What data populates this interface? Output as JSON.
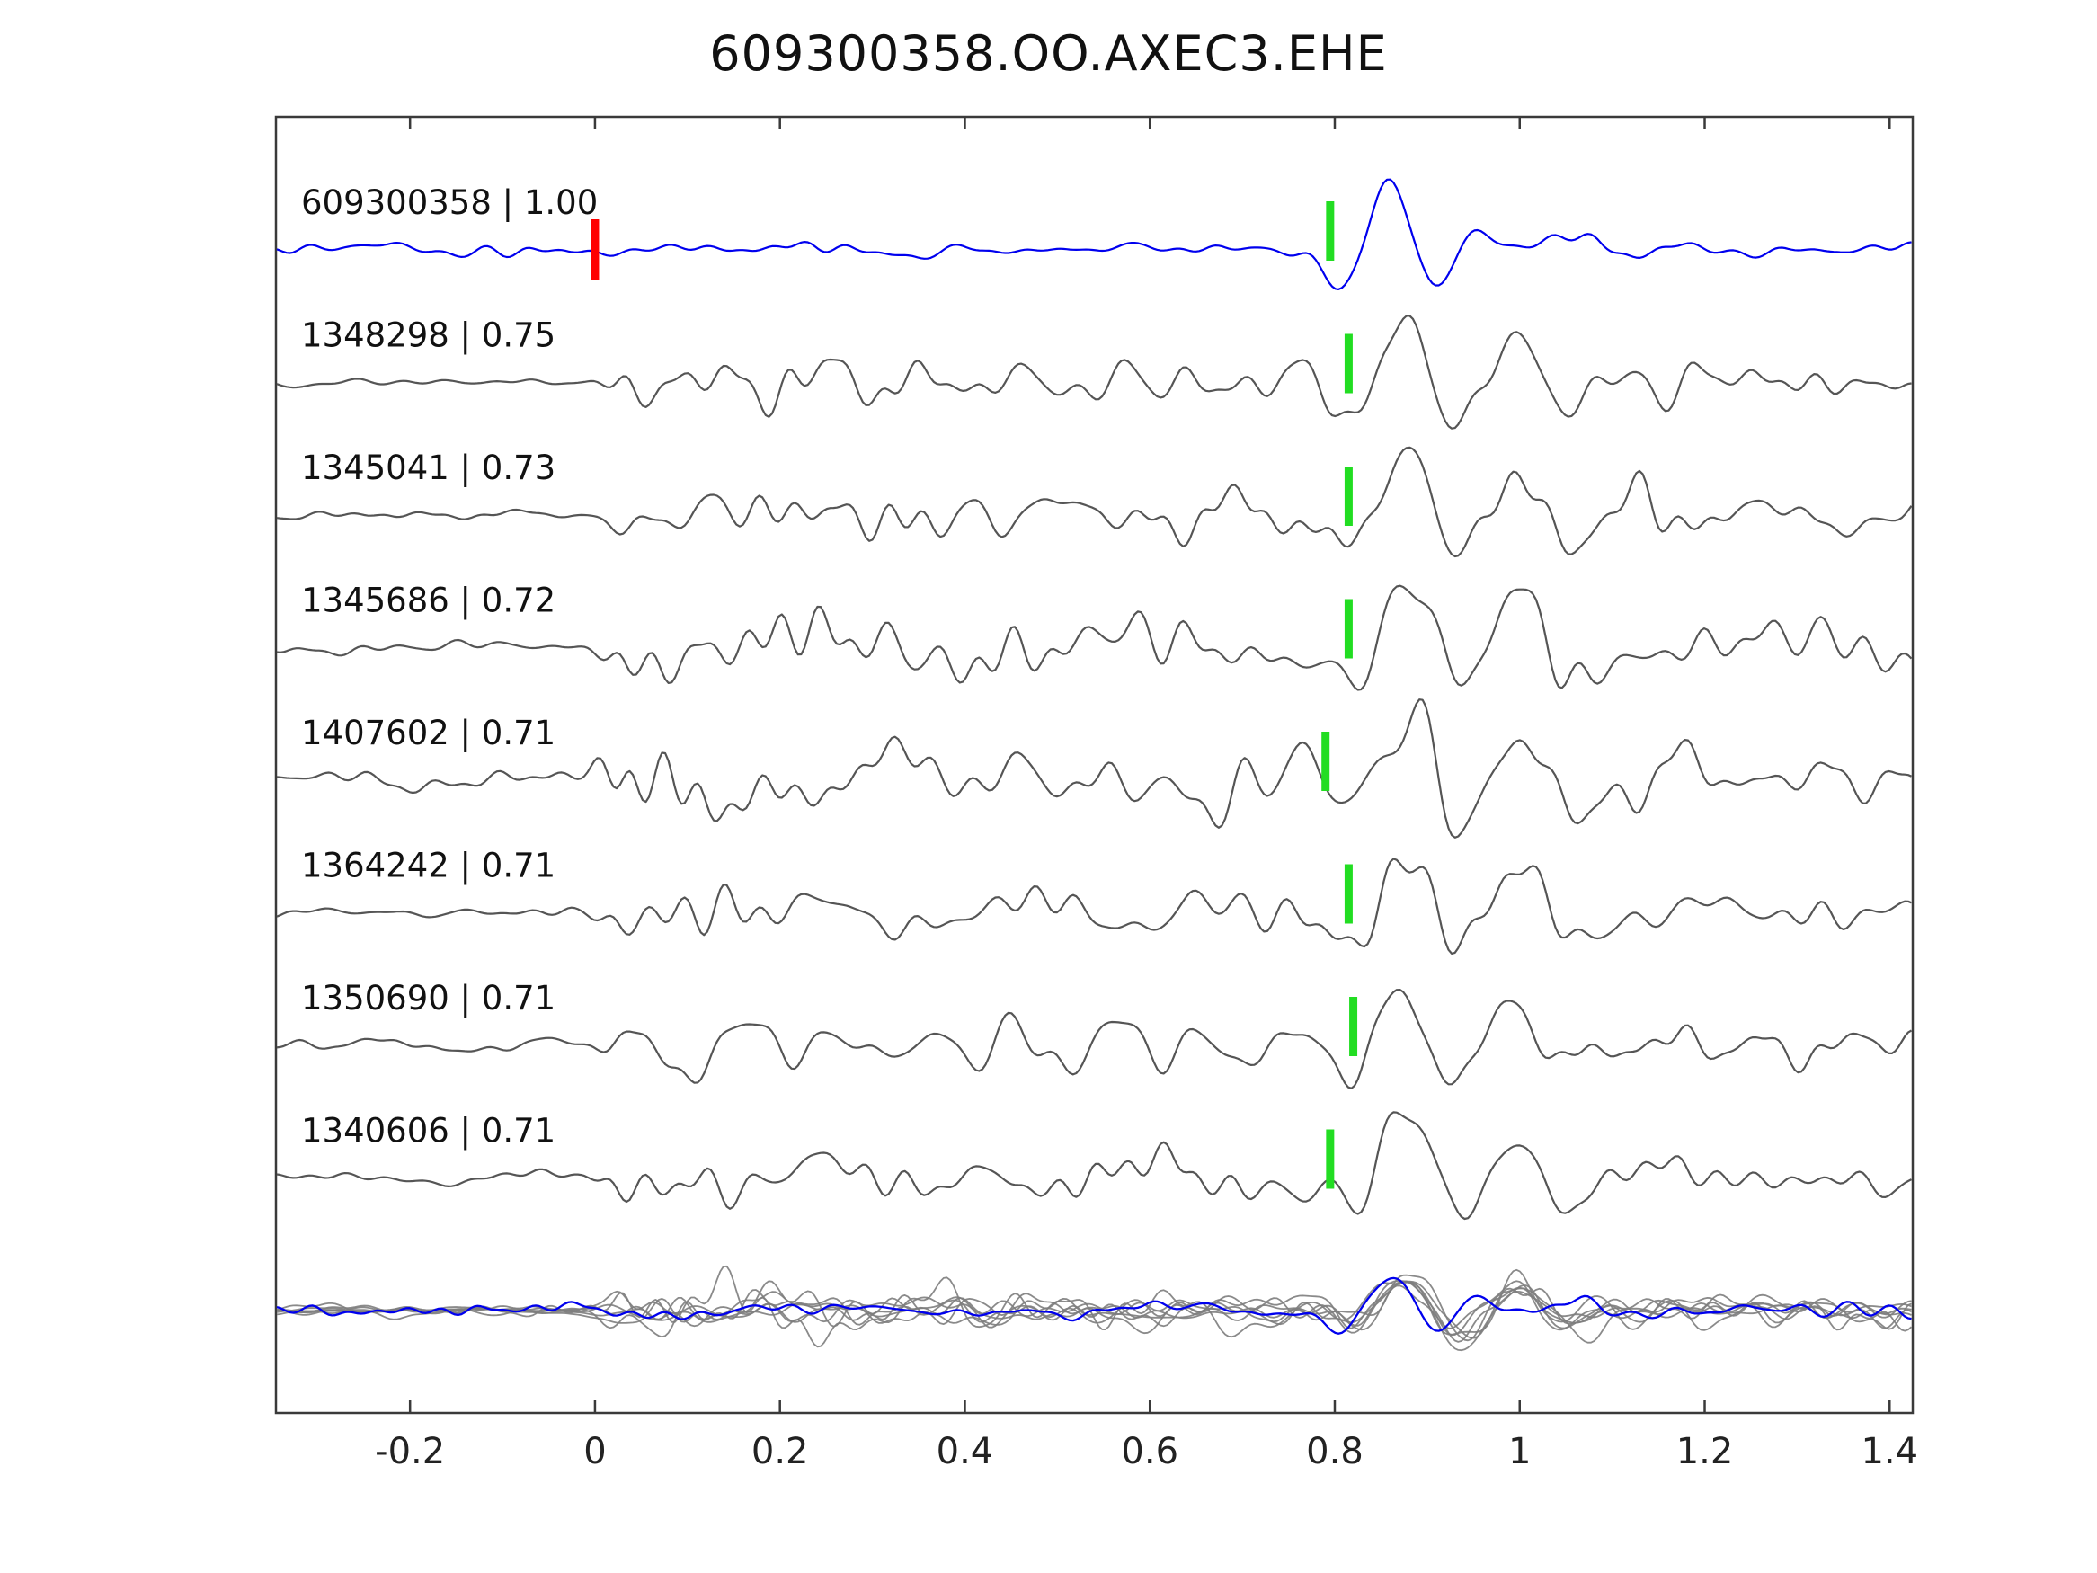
{
  "colors": {
    "template": "#0000ee",
    "detection": "#555555",
    "overlay_gray": "#7d7d7d",
    "pick_marker": "#22dd22",
    "origin_marker": "#ff0000",
    "axis": "#3a3a3a",
    "text": "#222222"
  },
  "chart_data": {
    "type": "line",
    "title": "609300358.OO.AXEC3.EHE",
    "xlabel": "",
    "ylabel": "",
    "xlim": [
      -0.345,
      1.425
    ],
    "x_ticks": [
      -0.2,
      0,
      0.2,
      0.4,
      0.6,
      0.8,
      1,
      1.2,
      1.4
    ],
    "x_tick_labels": [
      "-0.2",
      "0",
      "0.2",
      "0.4",
      "0.6",
      "0.8",
      "1",
      "1.2",
      "1.4"
    ],
    "grid": false,
    "legend": "none",
    "description": "Template-matching waveform figure: blue template trace on top, seven gray detection traces below with green pick markers near t=0.8, red origin marker at t=0 on the template, and an overlay of all traces at the bottom.",
    "traces": [
      {
        "id": "609300358",
        "correlation": 1.0,
        "label": "609300358 | 1.00",
        "role": "template",
        "pick_time": 0.795,
        "origin_marker_time": 0,
        "noise_scale": 0.25,
        "seed": 11
      },
      {
        "id": "1348298",
        "correlation": 0.75,
        "label": "1348298 | 0.75",
        "role": "detection",
        "pick_time": 0.815,
        "origin_marker_time": null,
        "noise_scale": 1.0,
        "seed": 22
      },
      {
        "id": "1345041",
        "correlation": 0.73,
        "label": "1345041 | 0.73",
        "role": "detection",
        "pick_time": 0.815,
        "origin_marker_time": null,
        "noise_scale": 1.25,
        "seed": 33
      },
      {
        "id": "1345686",
        "correlation": 0.72,
        "label": "1345686 | 0.72",
        "role": "detection",
        "pick_time": 0.815,
        "origin_marker_time": null,
        "noise_scale": 1.2,
        "seed": 44
      },
      {
        "id": "1407602",
        "correlation": 0.71,
        "label": "1407602 | 0.71",
        "role": "detection",
        "pick_time": 0.79,
        "origin_marker_time": null,
        "noise_scale": 1.8,
        "seed": 55
      },
      {
        "id": "1364242",
        "correlation": 0.71,
        "label": "1364242 | 0.71",
        "role": "detection",
        "pick_time": 0.815,
        "origin_marker_time": null,
        "noise_scale": 1.1,
        "seed": 66
      },
      {
        "id": "1350690",
        "correlation": 0.71,
        "label": "1350690 | 0.71",
        "role": "detection",
        "pick_time": 0.82,
        "origin_marker_time": null,
        "noise_scale": 1.15,
        "seed": 77
      },
      {
        "id": "1340606",
        "correlation": 0.71,
        "label": "1340606 | 0.71",
        "role": "detection",
        "pick_time": 0.795,
        "origin_marker_time": null,
        "noise_scale": 1.1,
        "seed": 88
      }
    ],
    "overlay": {
      "position": "bottom",
      "contains": "all detection traces superimposed in gray plus the blue template trace",
      "scale": 0.55
    }
  }
}
